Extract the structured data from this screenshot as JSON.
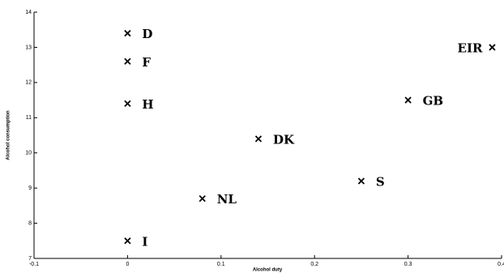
{
  "chart_data": {
    "type": "scatter",
    "x_label": "Alcohol duty",
    "y_label": "Alcohol consumption",
    "labels": [
      "D",
      "F",
      "H",
      "I",
      "NL",
      "DK",
      "S",
      "GB",
      "EIR"
    ],
    "x": [
      0,
      0,
      0,
      0,
      0.08,
      0.14,
      0.25,
      0.3,
      0.39
    ],
    "values": [
      13.4,
      12.6,
      11.4,
      7.5,
      8.7,
      10.4,
      9.2,
      11.5,
      13.0
    ],
    "color": "#000000",
    "xlim": [
      -0.1,
      0.4
    ],
    "xticks": [
      -0.1,
      0,
      0.1,
      0.2,
      0.3,
      0.4
    ],
    "ylim": [
      7,
      14
    ],
    "yticks": [
      7,
      8,
      9,
      10,
      11,
      12,
      13,
      14
    ],
    "grid": false
  }
}
